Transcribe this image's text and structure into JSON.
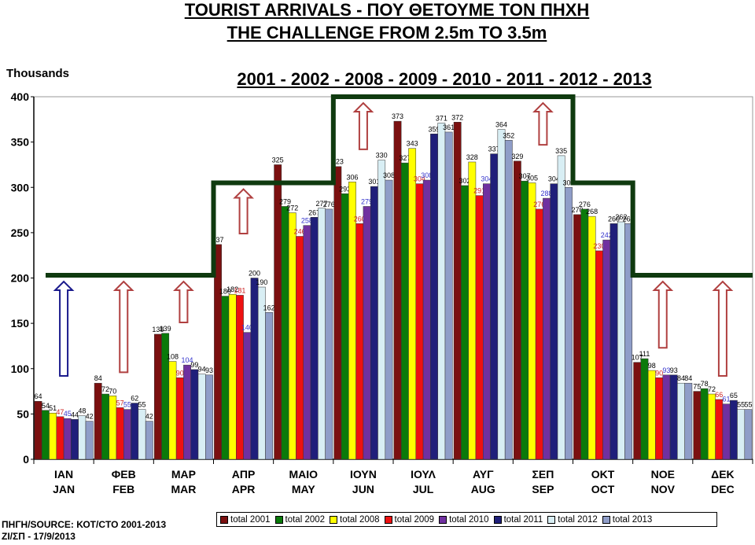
{
  "titles": {
    "line1": "TOURIST ARRIVALS - ΠΟΥ ΘΕΤΟΥΜΕ ΤΟΝ ΠΗΧΗ",
    "line2": "THE CHALLENGE FROM 2.5m TO 3.5m",
    "line3": "2001 - 2002 - 2008 - 2009 - 2010 - 2011 - 2012 - 2013"
  },
  "y_unit": "Thousands",
  "source": {
    "line1": "ΠΗΓΗ/SOURCE: ΚΟΤ/CTO  2001-2013",
    "line2": "ΖΙ/ΣΠ - 17/9/2013"
  },
  "chart_data": {
    "type": "bar",
    "ylim": [
      0,
      400
    ],
    "yticks": [
      0,
      50,
      100,
      150,
      200,
      250,
      300,
      350,
      400
    ],
    "categories": [
      {
        "gr": "ΙΑΝ",
        "en": "JAN"
      },
      {
        "gr": "ΦΕΒ",
        "en": "FEB"
      },
      {
        "gr": "ΜΑΡ",
        "en": "MAR"
      },
      {
        "gr": "ΑΠΡ",
        "en": "APR"
      },
      {
        "gr": "ΜΑΙΟ",
        "en": "MAY"
      },
      {
        "gr": "ΙΟΥΝ",
        "en": "JUN"
      },
      {
        "gr": "ΙΟΥΛ",
        "en": "JUL"
      },
      {
        "gr": "ΑΥΓ",
        "en": "AUG"
      },
      {
        "gr": "ΣΕΠ",
        "en": "SEP"
      },
      {
        "gr": "ΟΚΤ",
        "en": "OCT"
      },
      {
        "gr": "ΝΟΕ",
        "en": "NOV"
      },
      {
        "gr": "ΔΕΚ",
        "en": "DEC"
      }
    ],
    "series": [
      {
        "name": "total 2001",
        "color": "#7b1010",
        "label_color": "#000000",
        "values": [
          64,
          84,
          138,
          237,
          325,
          323,
          373,
          372,
          329,
          270,
          107,
          75
        ]
      },
      {
        "name": "total 2002",
        "color": "#0a7a0a",
        "label_color": "#000000",
        "values": [
          54,
          72,
          139,
          180,
          279,
          293,
          327,
          302,
          307,
          276,
          111,
          78
        ]
      },
      {
        "name": "total 2008",
        "color": "#ffff00",
        "label_color": "#000000",
        "values": [
          51,
          70,
          108,
          182,
          272,
          306,
          343,
          328,
          305,
          268,
          98,
          72
        ]
      },
      {
        "name": "total 2009",
        "color": "#ee1111",
        "label_color": "#cc2222",
        "values": [
          47,
          57,
          90,
          181,
          246,
          260,
          304,
          291,
          276,
          230,
          90,
          66
        ]
      },
      {
        "name": "total 2010",
        "color": "#7030a0",
        "label_color": "#3333cc",
        "values": [
          45,
          55,
          104,
          140,
          258,
          279,
          308,
          304,
          288,
          242,
          93,
          61
        ]
      },
      {
        "name": "total 2011",
        "color": "#1f1f7a",
        "label_color": "#000000",
        "values": [
          44,
          62,
          99,
          200,
          267,
          301,
          359,
          337,
          304,
          260,
          93,
          65
        ]
      },
      {
        "name": "total 2012",
        "color": "#d8eef4",
        "label_color": "#000000",
        "values": [
          48,
          55,
          94,
          190,
          277,
          330,
          371,
          364,
          335,
          262,
          84,
          55
        ]
      },
      {
        "name": "total 2013",
        "color": "#8f9dc8",
        "label_color": "#000000",
        "values": [
          42,
          42,
          93,
          162,
          276,
          308,
          361,
          352,
          300,
          260,
          84,
          55
        ]
      }
    ],
    "target_line": [
      {
        "from": 0,
        "to": 2,
        "value": 203
      },
      {
        "from": 3,
        "to": 4,
        "value": 305
      },
      {
        "from": 5,
        "to": 8,
        "value": 400
      },
      {
        "from": 9,
        "to": 9,
        "value": 305
      },
      {
        "from": 10,
        "to": 11,
        "value": 203
      }
    ],
    "arrows": [
      {
        "month": 0,
        "color": "#1a1a8c"
      },
      {
        "month": 1,
        "color": "#b04040"
      },
      {
        "month": 2,
        "color": "#b04040"
      },
      {
        "month": 3,
        "color": "#b04040"
      },
      {
        "month": 5,
        "color": "#b04040"
      },
      {
        "month": 8,
        "color": "#b04040"
      },
      {
        "month": 10,
        "color": "#b04040"
      },
      {
        "month": 11,
        "color": "#b04040"
      }
    ]
  }
}
